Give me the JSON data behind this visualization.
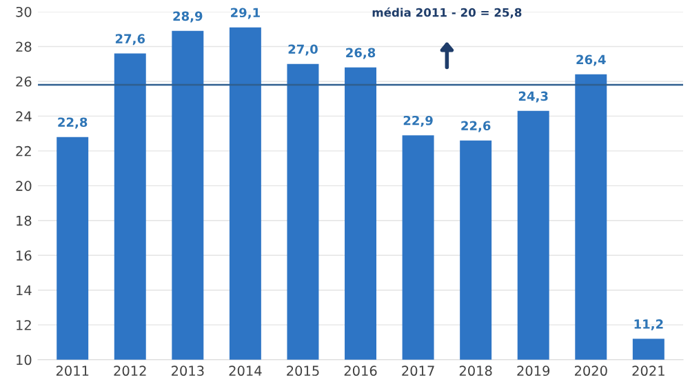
{
  "chart_data": {
    "type": "bar",
    "categories": [
      "2011",
      "2012",
      "2013",
      "2014",
      "2015",
      "2016",
      "2017",
      "2018",
      "2019",
      "2020",
      "2021"
    ],
    "values": [
      22.8,
      27.6,
      28.9,
      29.1,
      27.0,
      26.8,
      22.9,
      22.6,
      24.3,
      26.4,
      11.2
    ],
    "value_labels": [
      "22,8",
      "27,6",
      "28,9",
      "29,1",
      "27,0",
      "26,8",
      "22,9",
      "22,6",
      "24,3",
      "26,4",
      "11,2"
    ],
    "color": "#2e75c5",
    "ylim": [
      10,
      30
    ],
    "yticks": [
      10,
      12,
      14,
      16,
      18,
      20,
      22,
      24,
      26,
      28,
      30
    ],
    "grid": "y",
    "ref_lines": [
      {
        "axis": "y",
        "value": 25.8,
        "label": "média 2011 - 20 = 25,8",
        "color": "#2f5f8f",
        "line_style": "solid"
      }
    ]
  }
}
